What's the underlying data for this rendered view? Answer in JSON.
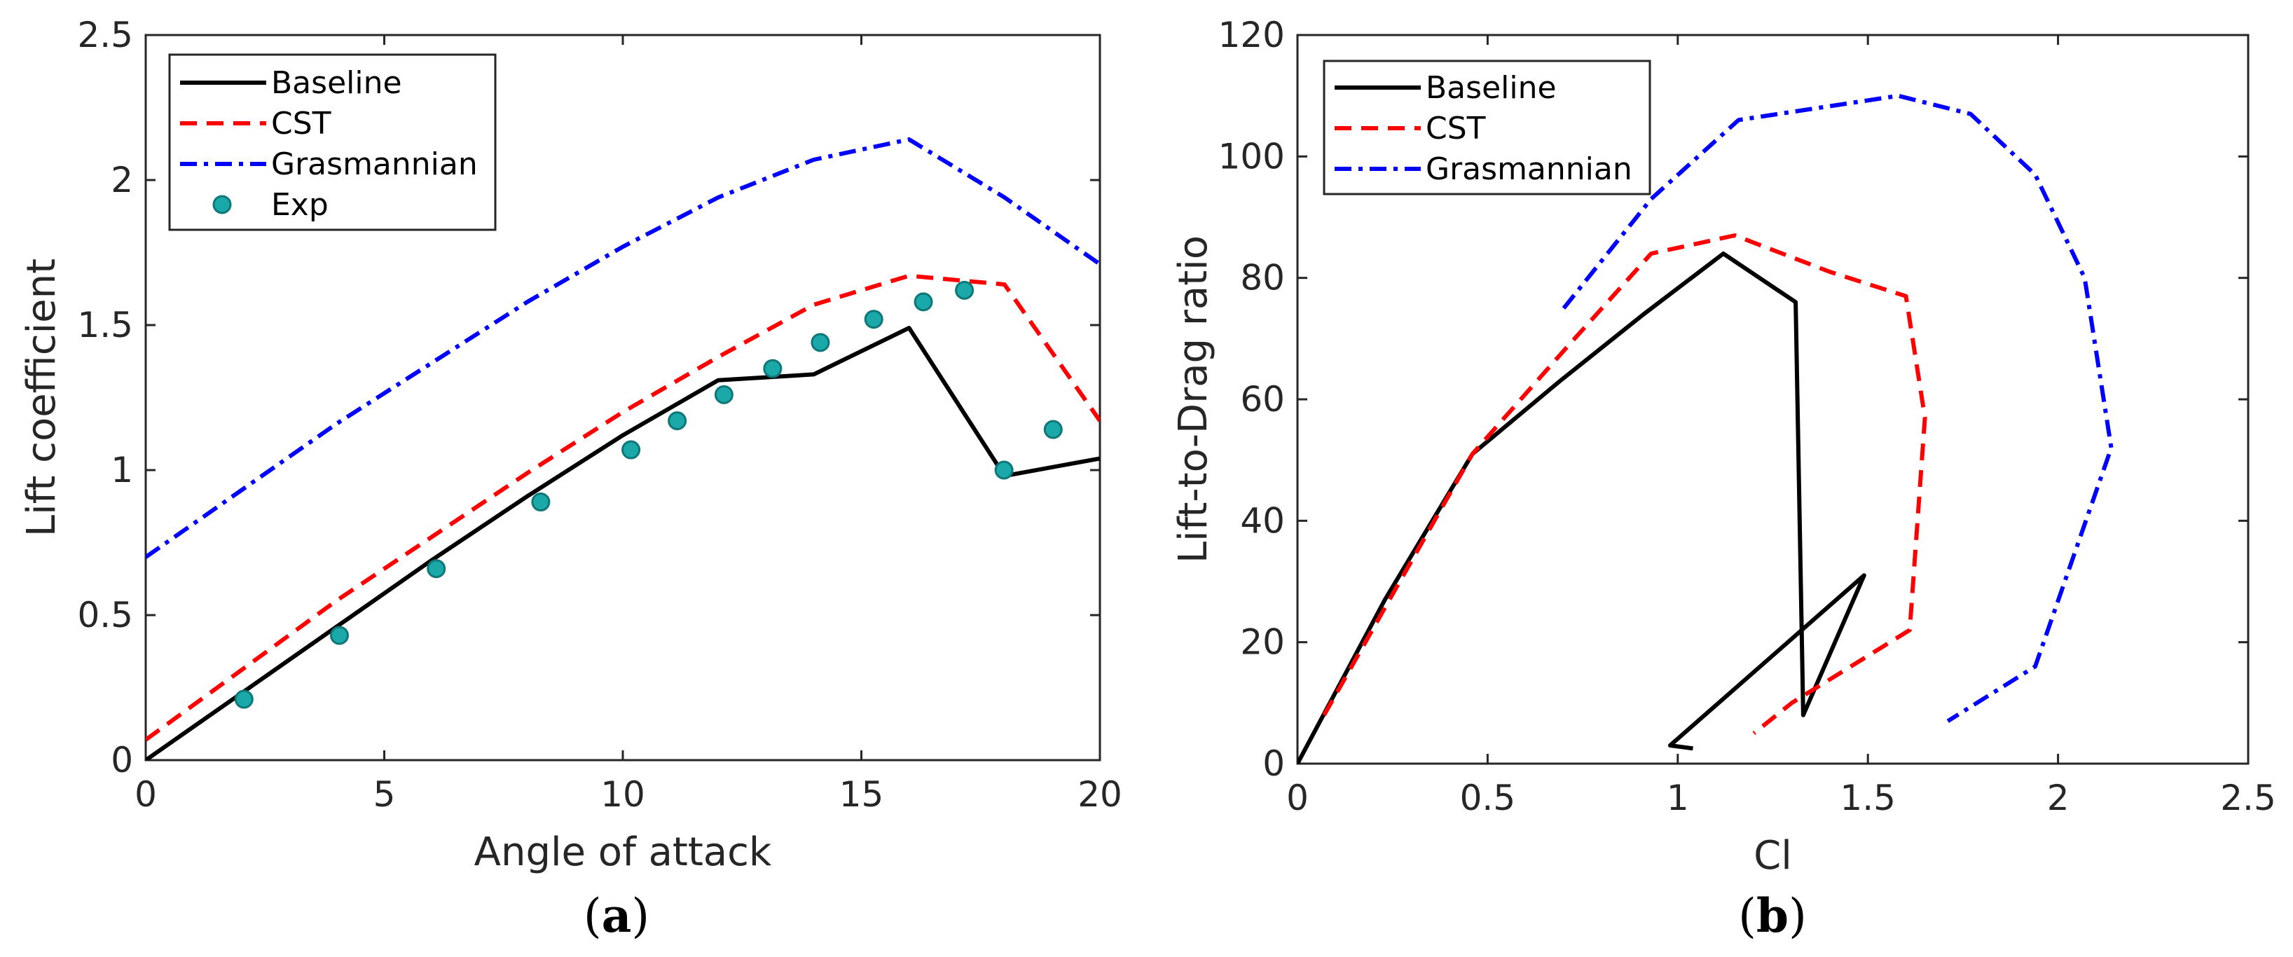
{
  "chart_data": [
    {
      "id": "a",
      "type": "line",
      "panel_label": {
        "open": "(",
        "letter": "a",
        "close": ")"
      },
      "xlabel": "Angle of attack",
      "ylabel": "Lift coefficient",
      "xlim": [
        0,
        20
      ],
      "ylim": [
        0,
        2.5
      ],
      "xticks": [
        0,
        5,
        10,
        15,
        20
      ],
      "xtick_labels": [
        "0",
        "5",
        "10",
        "15",
        "20"
      ],
      "yticks": [
        0,
        0.5,
        1,
        1.5,
        2,
        2.5
      ],
      "ytick_labels": [
        "0",
        "0.5",
        "1",
        "1.5",
        "2",
        "2.5"
      ],
      "legend_position": "top-left",
      "series": [
        {
          "name": "Baseline",
          "style": "solid",
          "color": "#000000",
          "x": [
            0,
            2,
            4,
            6,
            8,
            10,
            12,
            14,
            16,
            18,
            20
          ],
          "y": [
            0,
            0.23,
            0.46,
            0.69,
            0.91,
            1.12,
            1.31,
            1.33,
            1.49,
            0.98,
            1.04
          ]
        },
        {
          "name": "CST",
          "style": "dashed",
          "color": "#ff0000",
          "x": [
            0,
            2,
            4,
            6,
            8,
            10,
            12,
            14,
            16,
            18,
            20
          ],
          "y": [
            0.07,
            0.31,
            0.55,
            0.77,
            0.99,
            1.2,
            1.39,
            1.57,
            1.67,
            1.64,
            1.17
          ]
        },
        {
          "name": "Grasmannian",
          "style": "dashdot",
          "color": "#0000ff",
          "x": [
            0,
            2,
            4,
            6,
            8,
            10,
            12,
            14,
            16,
            18,
            20
          ],
          "y": [
            0.7,
            0.93,
            1.16,
            1.37,
            1.58,
            1.77,
            1.94,
            2.07,
            2.14,
            1.94,
            1.71
          ]
        },
        {
          "name": "Exp",
          "style": "markers",
          "color": "#1aa8a8",
          "x": [
            2.06,
            4.06,
            6.09,
            8.28,
            10.17,
            11.14,
            12.12,
            13.14,
            14.14,
            15.26,
            16.3,
            17.16,
            17.99,
            19.02
          ],
          "y": [
            0.21,
            0.43,
            0.66,
            0.89,
            1.07,
            1.17,
            1.26,
            1.35,
            1.44,
            1.52,
            1.58,
            1.62,
            1.0,
            1.14
          ]
        }
      ]
    },
    {
      "id": "b",
      "type": "line",
      "panel_label": {
        "open": "(",
        "letter": "b",
        "close": ")"
      },
      "xlabel": "Cl",
      "ylabel": "Lift-to-Drag ratio",
      "xlim": [
        0,
        2.5
      ],
      "ylim": [
        0,
        120
      ],
      "xticks": [
        0,
        0.5,
        1,
        1.5,
        2,
        2.5
      ],
      "xtick_labels": [
        "0",
        "0.5",
        "1",
        "1.5",
        "2",
        "2.5"
      ],
      "yticks": [
        0,
        20,
        40,
        60,
        80,
        100,
        120
      ],
      "ytick_labels": [
        "0",
        "20",
        "40",
        "60",
        "80",
        "100",
        "120"
      ],
      "legend_position": "top-left",
      "series": [
        {
          "name": "Baseline",
          "style": "solid",
          "color": "#000000",
          "x": [
            0,
            0.23,
            0.46,
            0.69,
            0.91,
            1.12,
            1.31,
            1.33,
            1.49,
            0.98,
            1.04
          ],
          "y": [
            0,
            27,
            51,
            63,
            74,
            84,
            76,
            8,
            31,
            3,
            2.5
          ]
        },
        {
          "name": "CST",
          "style": "dashed",
          "color": "#ff0000",
          "x": [
            0.07,
            0.26,
            0.46,
            0.7,
            0.93,
            1.15,
            1.4,
            1.6,
            1.65,
            1.61,
            1.3,
            1.2
          ],
          "y": [
            8,
            29,
            51,
            68,
            84,
            87,
            81,
            77,
            57,
            22,
            10,
            5
          ]
        },
        {
          "name": "Grasmannian",
          "style": "dashdot",
          "color": "#0000ff",
          "x": [
            0.7,
            0.93,
            1.16,
            1.37,
            1.58,
            1.77,
            1.94,
            2.07,
            2.14,
            1.94,
            1.71
          ],
          "y": [
            75,
            93,
            106,
            108,
            110,
            107,
            97,
            80,
            52,
            16,
            7
          ]
        }
      ]
    }
  ],
  "legend_labels": {
    "a": [
      "Baseline",
      "CST",
      "Grasmannian",
      "Exp"
    ],
    "b": [
      "Baseline",
      "CST",
      "Grasmannian"
    ]
  }
}
